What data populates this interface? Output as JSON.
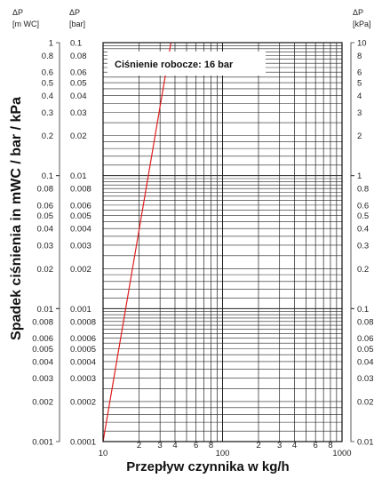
{
  "chart_data": {
    "type": "line",
    "title": "",
    "annotation": "Ciśnienie robocze: 16 bar",
    "xlabel": "Przepływ czynnika w kg/h",
    "ylabel": "Spadek ciśnienia in mWC / bar / kPa",
    "x_scale": "log",
    "y_scale": "log",
    "xlim": [
      10,
      1000
    ],
    "ylim_bar": [
      0.0001,
      0.1
    ],
    "grid": true,
    "x_ticks": [
      "10",
      "2",
      "3",
      "4",
      "6",
      "8",
      "100",
      "2",
      "3",
      "4",
      "6",
      "8",
      "1000"
    ],
    "y_axes": {
      "mwc": {
        "header_symbol": "ΔP",
        "header_unit": "[m WC]",
        "ticks": [
          "1",
          "0.8",
          "0.6",
          "0.5",
          "0.4",
          "0.3",
          "0.2",
          "0.1",
          "0.08",
          "0.06",
          "0.05",
          "0.04",
          "0.03",
          "0.02",
          "0.01",
          "0.008",
          "0.006",
          "0.005",
          "0.004",
          "0.003",
          "0.002",
          "0.001"
        ]
      },
      "bar": {
        "header_symbol": "ΔP",
        "header_unit": "[bar]",
        "ticks": [
          "0.1",
          "0.08",
          "0.06",
          "0.05",
          "0.04",
          "0.03",
          "0.02",
          "0.01",
          "0.008",
          "0.006",
          "0.005",
          "0.004",
          "0.003",
          "0.002",
          "0.001",
          "0.0008",
          "0.0006",
          "0.0005",
          "0.0004",
          "0.0003",
          "0.0002",
          "0.0001"
        ]
      },
      "kpa": {
        "header_symbol": "ΔP",
        "header_unit": "[kPa]",
        "ticks": [
          "10",
          "8",
          "6",
          "5",
          "4",
          "3",
          "2",
          "1",
          "0.8",
          "0.6",
          "0.5",
          "0.4",
          "0.3",
          "0.2",
          "0.1",
          "0.08",
          "0.06",
          "0.05",
          "0.04",
          "0.03",
          "0.02",
          "0.01"
        ]
      }
    },
    "series": [
      {
        "color": "#e01e1e",
        "x": [
          10,
          37
        ],
        "y_bar": [
          0.0001,
          0.1
        ]
      }
    ]
  }
}
